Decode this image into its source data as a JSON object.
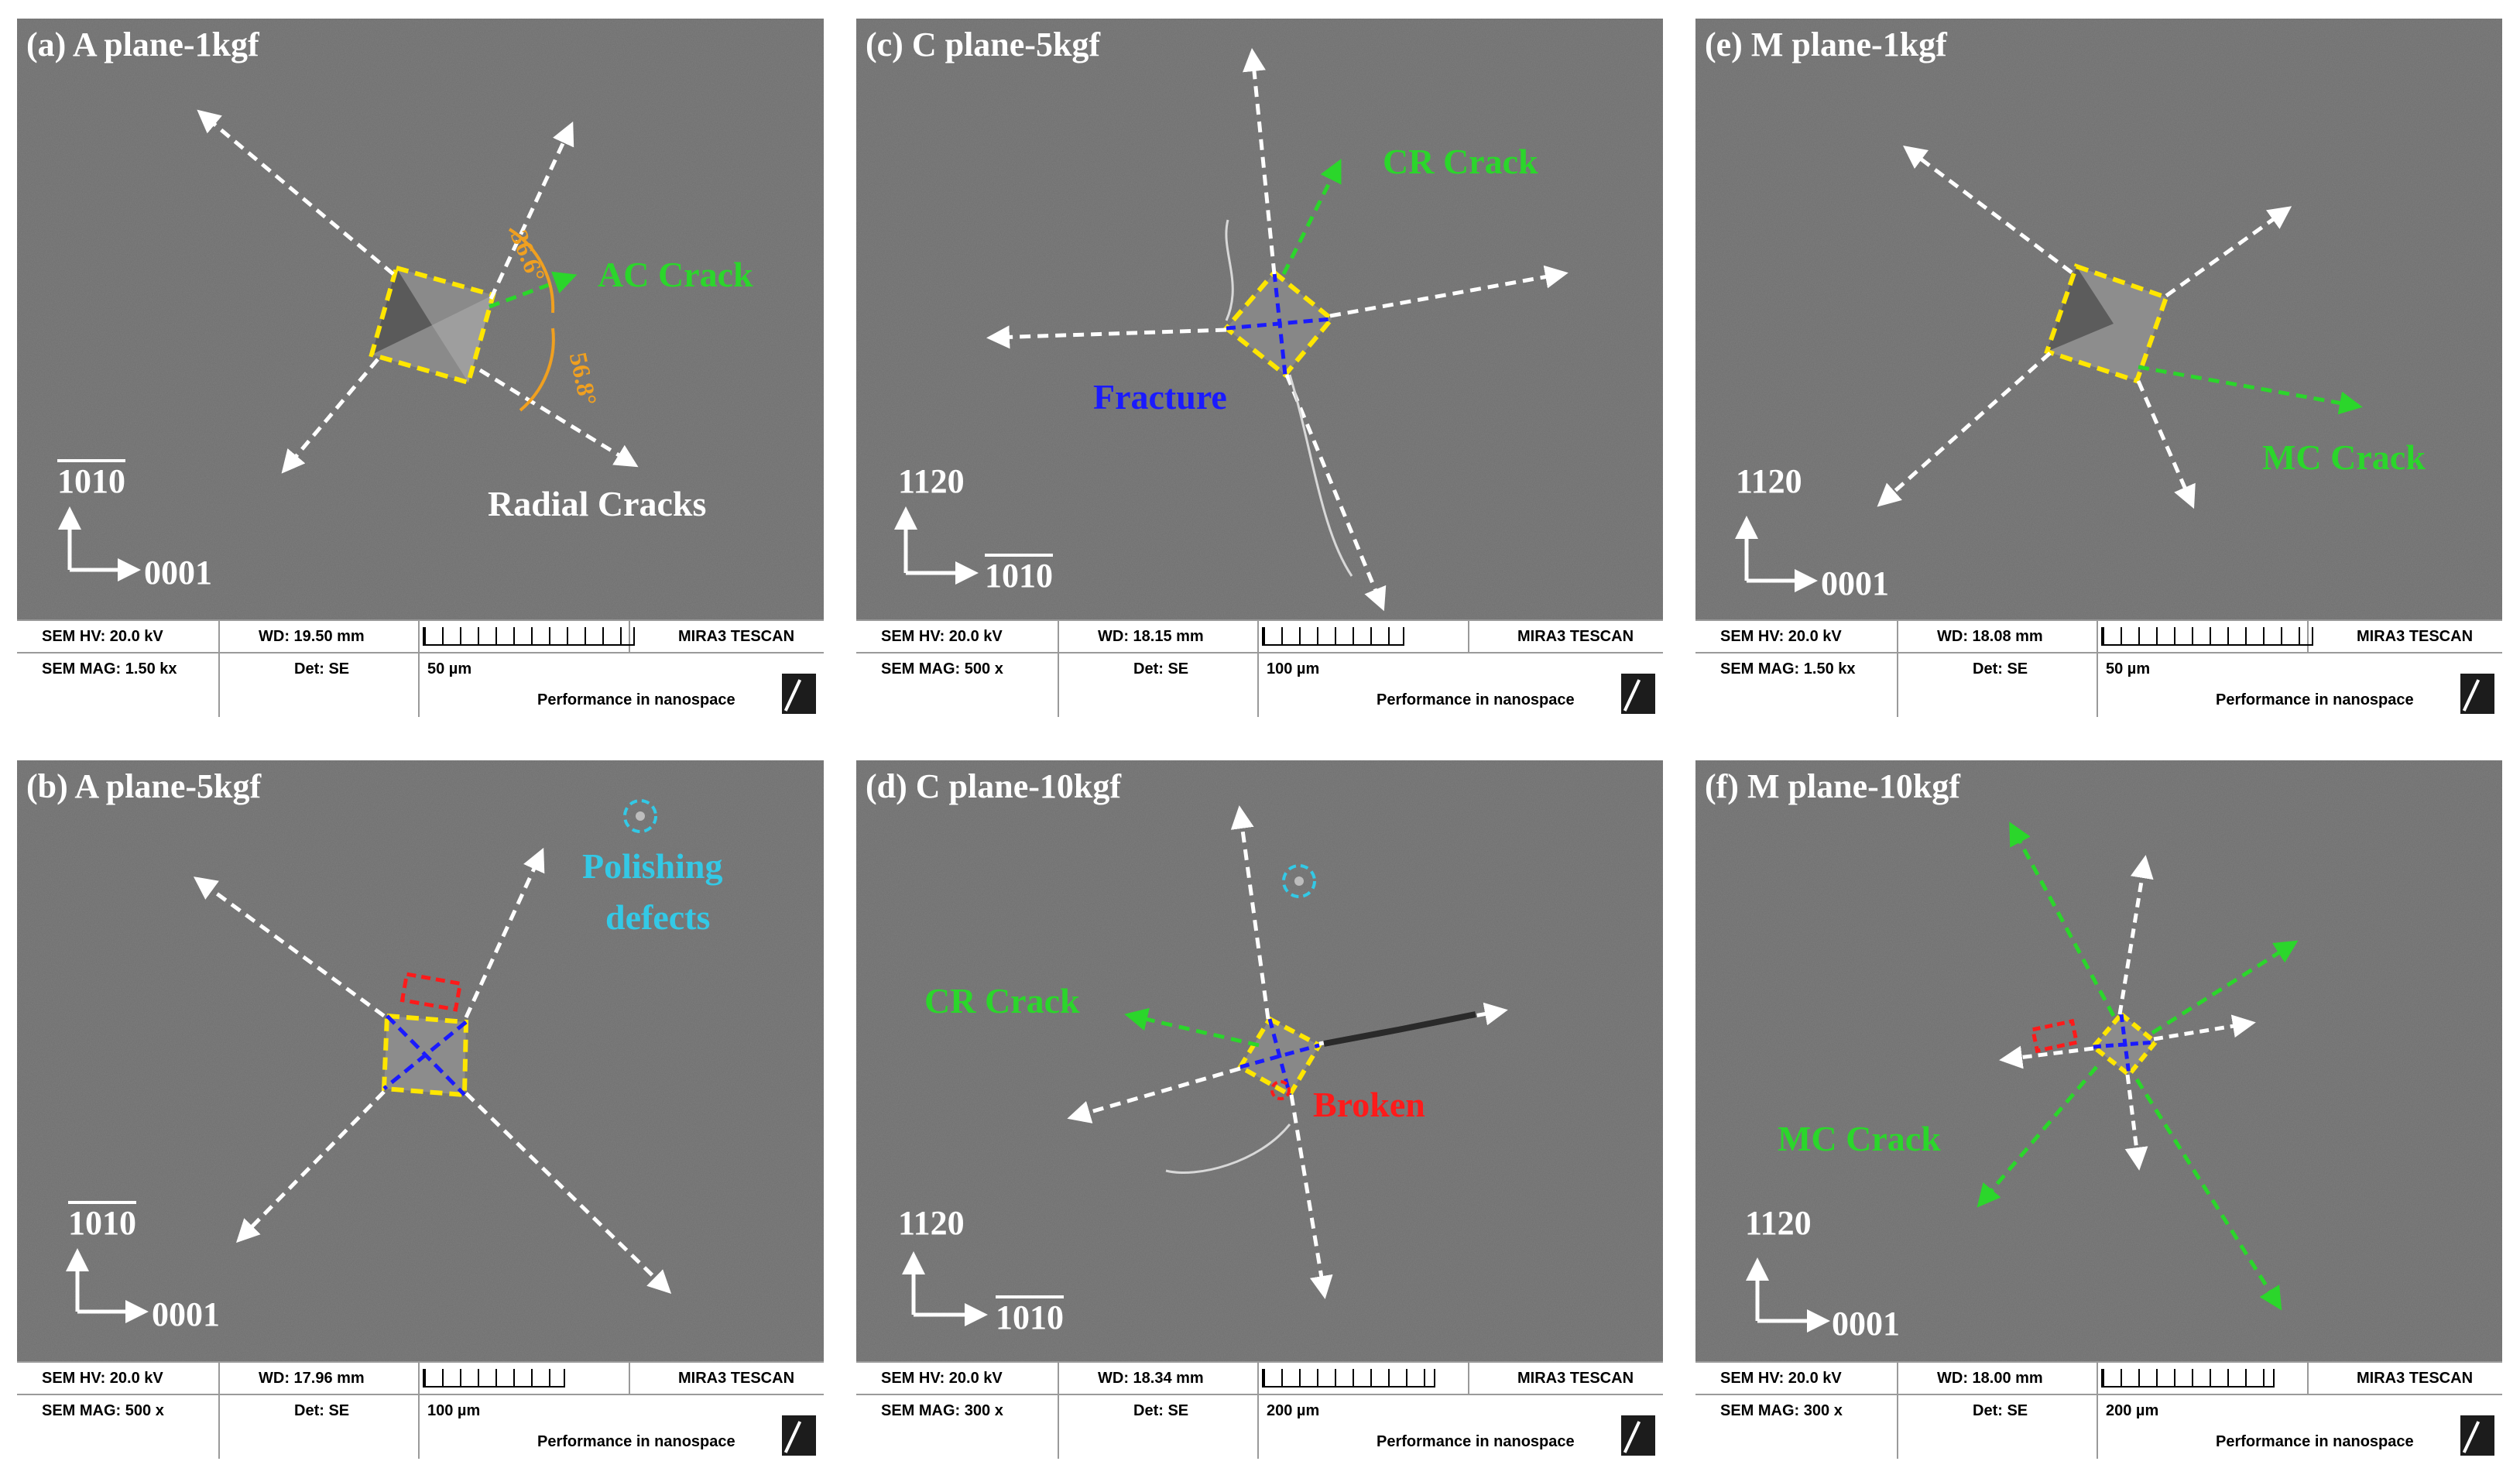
{
  "panels": [
    {
      "id": "a",
      "title": "(a) A plane-1kgf",
      "annotations": {
        "crack": "AC Crack",
        "radial": "Radial Cracks",
        "angle1": "36.6°",
        "angle2": "56.8°"
      },
      "axes": {
        "up": "1010",
        "right": "0001"
      },
      "info": {
        "hv": "SEM HV: 20.0 kV",
        "wd": "WD: 19.50 mm",
        "mag": "SEM MAG: 1.50 kx",
        "det": "Det: SE",
        "scale": "50 µm",
        "brand": "MIRA3 TESCAN",
        "slogan": "Performance in nanospace"
      }
    },
    {
      "id": "b",
      "title": "(b) A plane-5kgf",
      "annotations": {
        "polish1": "Polishing",
        "polish2": "defects"
      },
      "axes": {
        "up": "1010",
        "right": "0001"
      },
      "info": {
        "hv": "SEM HV: 20.0 kV",
        "wd": "WD: 17.96 mm",
        "mag": "SEM MAG: 500 x",
        "det": "Det: SE",
        "scale": "100 µm",
        "brand": "MIRA3 TESCAN",
        "slogan": "Performance in nanospace"
      }
    },
    {
      "id": "c",
      "title": "(c) C plane-5kgf",
      "annotations": {
        "crack": "CR Crack",
        "fracture": "Fracture"
      },
      "axes": {
        "up": "1120",
        "right": "1010"
      },
      "info": {
        "hv": "SEM HV: 20.0 kV",
        "wd": "WD: 18.15 mm",
        "mag": "SEM MAG: 500 x",
        "det": "Det: SE",
        "scale": "100 µm",
        "brand": "MIRA3 TESCAN",
        "slogan": "Performance in nanospace"
      }
    },
    {
      "id": "d",
      "title": "(d) C plane-10kgf",
      "annotations": {
        "crack": "CR Crack",
        "broken": "Broken"
      },
      "axes": {
        "up": "1120",
        "right": "1010"
      },
      "info": {
        "hv": "SEM HV: 20.0 kV",
        "wd": "WD: 18.34 mm",
        "mag": "SEM MAG: 300 x",
        "det": "Det: SE",
        "scale": "200 µm",
        "brand": "MIRA3 TESCAN",
        "slogan": "Performance in nanospace"
      }
    },
    {
      "id": "e",
      "title": "(e) M plane-1kgf",
      "annotations": {
        "crack": "MC Crack"
      },
      "axes": {
        "up": "1120",
        "right": "0001"
      },
      "info": {
        "hv": "SEM HV: 20.0 kV",
        "wd": "WD: 18.08 mm",
        "mag": "SEM MAG: 1.50 kx",
        "det": "Det: SE",
        "scale": "50 µm",
        "brand": "MIRA3 TESCAN",
        "slogan": "Performance in nanospace"
      }
    },
    {
      "id": "f",
      "title": "(f) M plane-10kgf",
      "annotations": {
        "crack": "MC Crack"
      },
      "axes": {
        "up": "1120",
        "right": "0001"
      },
      "info": {
        "hv": "SEM HV: 20.0 kV",
        "wd": "WD: 18.00 mm",
        "mag": "SEM MAG: 300 x",
        "det": "Det: SE",
        "scale": "200 µm",
        "brand": "MIRA3 TESCAN",
        "slogan": "Performance in nanospace"
      }
    }
  ],
  "colors": {
    "crack_green": "#2bd62b",
    "indent_yellow": "#ffe600",
    "fracture_blue": "#1a1aff",
    "broken_red": "#ff1a1a",
    "defect_cyan": "#33c9e6",
    "angle_orange": "#f0a020",
    "arrow_white": "#ffffff"
  }
}
